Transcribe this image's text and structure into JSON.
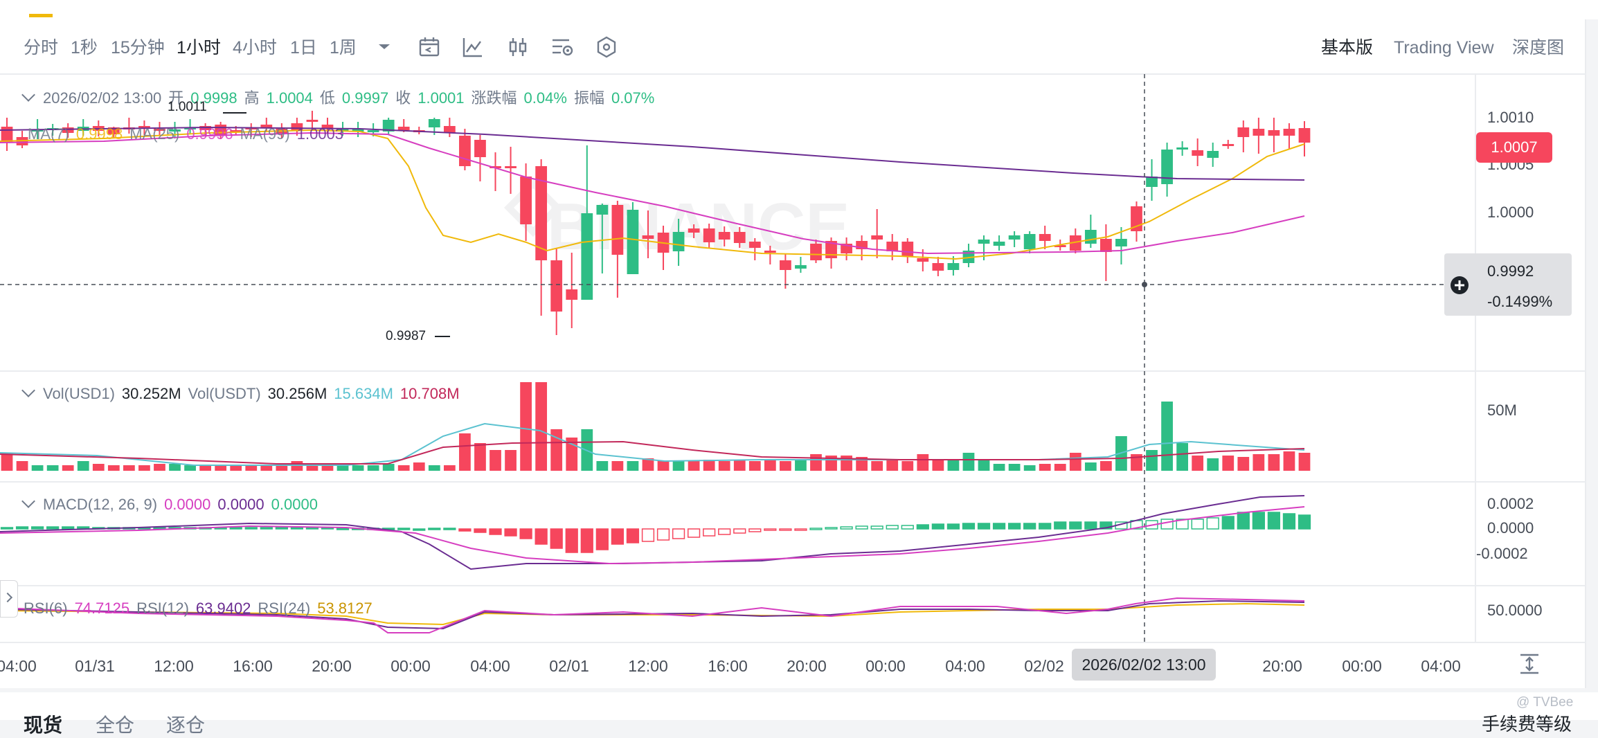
{
  "toolbar": {
    "timeframes": [
      "分时",
      "1秒",
      "15分钟",
      "1小时",
      "4小时",
      "1日",
      "1周"
    ],
    "active_timeframe": "1小时",
    "views": [
      "基本版",
      "Trading View",
      "深度图"
    ],
    "active_view": "基本版",
    "icons": [
      "chevron-down-icon",
      "calendar-icon",
      "indicator-icon",
      "candle-type-icon",
      "settings-icon",
      "hexagon-icon"
    ]
  },
  "main_legend": {
    "date": "2026/02/02 13:00",
    "open_label": "开",
    "open": "0.9998",
    "high_label": "高",
    "high": "1.0004",
    "low_label": "低",
    "low": "0.9997",
    "close_label": "收",
    "close": "1.0001",
    "change_label": "涨跌幅",
    "change": "0.04%",
    "amp_label": "振幅",
    "amp": "0.07%",
    "ma7": "MA(7)",
    "ma7_val": "0.9998",
    "ma25": "MA(25)",
    "ma25_val": "0.9996",
    "ma99": "MA(99)",
    "ma99_val": "1.0003"
  },
  "vol_legend": {
    "vol1_label": "Vol(USD1)",
    "vol1": "30.252M",
    "vol2_label": "Vol(USDT)",
    "vol2": "30.256M",
    "ma5": "15.634M",
    "ma10": "10.708M"
  },
  "macd_legend": {
    "label": "MACD(12, 26, 9)",
    "dif": "0.0000",
    "dea": "0.0000",
    "hist": "0.0000"
  },
  "rsi_legend": {
    "rsi6_label": "RSI(6)",
    "rsi6": "74.7125",
    "rsi12_label": "RSI(12)",
    "rsi12": "63.9402",
    "rsi24_label": "RSI(24)",
    "rsi24": "53.8127"
  },
  "price_axis": {
    "ticks": [
      "1.0010",
      "1.0005",
      "1.0000"
    ],
    "current_price": "1.0007",
    "crosshair_price": "0.9992",
    "crosshair_pct": "-0.1499%",
    "high_marker": "1.0011",
    "low_marker": "0.9987"
  },
  "vol_axis": {
    "ticks": [
      "50M"
    ]
  },
  "macd_axis": {
    "ticks": [
      "0.0002",
      "0.0000",
      "-0.0002"
    ]
  },
  "rsi_axis": {
    "ticks": [
      "50.0000"
    ]
  },
  "time_axis": {
    "labels": [
      "04:00",
      "01/31",
      "12:00",
      "16:00",
      "20:00",
      "00:00",
      "04:00",
      "02/01",
      "12:00",
      "16:00",
      "20:00",
      "00:00",
      "04:00",
      "02/02",
      "",
      "20:00",
      "00:00",
      "04:00"
    ],
    "crosshair_time": "2026/02/02 13:00"
  },
  "colors": {
    "up": "#2ebd85",
    "down": "#f6465d",
    "ma7": "#f0b90b",
    "ma25": "#d63ec0",
    "ma99": "#6a2c91",
    "vol_ma5": "#5bc2d0",
    "vol_ma10": "#c2285a"
  },
  "watermark": "BINANCE",
  "bottom_partial": [
    "现货",
    "全仓",
    "逐仓",
    "手续费等级"
  ],
  "credit": "@ TVBee"
}
